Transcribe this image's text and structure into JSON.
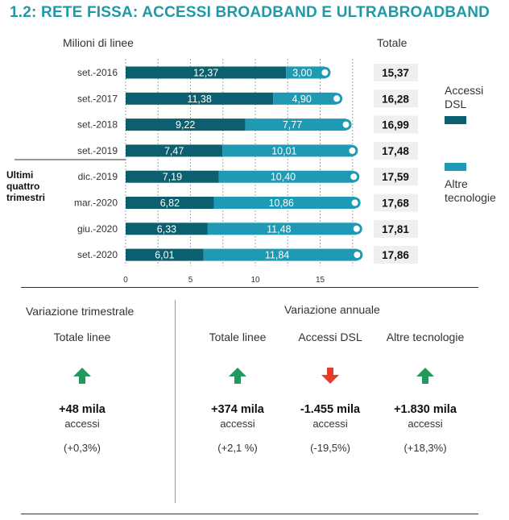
{
  "title": "1.2: RETE FISSA: ACCESSI BROADBAND E ULTRABROADBAND",
  "colors": {
    "dsl": "#0b5f6e",
    "altre": "#1e9ab5",
    "title": "#1e9aa6",
    "up": "#1f9a5b",
    "down": "#e83a2a"
  },
  "chart_data": {
    "type": "bar",
    "orientation": "horizontal",
    "stacked": true,
    "ylabel": "Milioni di linee",
    "total_label": "Totale",
    "group_label": "Ultimi quattro trimestri",
    "categories": [
      "set.-2016",
      "set.-2017",
      "set.-2018",
      "set.-2019",
      "dic.-2019",
      "mar.-2020",
      "giu.-2020",
      "set.-2020"
    ],
    "series": [
      {
        "name": "Accessi DSL",
        "values": [
          12.37,
          11.38,
          9.22,
          7.47,
          7.19,
          6.82,
          6.33,
          6.01
        ],
        "labels": [
          "12,37",
          "11,38",
          "9,22",
          "7,47",
          "7,19",
          "6,82",
          "6,33",
          "6,01"
        ]
      },
      {
        "name": "Altre tecnologie",
        "values": [
          3.0,
          4.9,
          7.77,
          10.01,
          10.4,
          10.86,
          11.48,
          11.84
        ],
        "labels": [
          "3,00",
          "4,90",
          "7,77",
          "10,01",
          "10,40",
          "10,86",
          "11,48",
          "11,84"
        ]
      }
    ],
    "totals": [
      "15,37",
      "16,28",
      "16,99",
      "17,48",
      "17,59",
      "17,68",
      "17,81",
      "17,86"
    ],
    "xlim": [
      0,
      17.9
    ],
    "xticks": [
      0,
      5,
      10,
      15
    ],
    "xtick_labels": [
      "0",
      "5",
      "10",
      "15"
    ],
    "grid": true,
    "legend": [
      "Accessi DSL",
      "Altre tecnologie"
    ],
    "legend_placement": "right"
  },
  "summary": {
    "quarterly": {
      "heading": "Variazione trimestrale",
      "items": [
        {
          "label": "Totale linee",
          "direction": "up",
          "value": "+48 mila",
          "unit": "accessi",
          "pct": "(+0,3%)"
        }
      ]
    },
    "annual": {
      "heading": "Variazione annuale",
      "items": [
        {
          "label": "Totale linee",
          "direction": "up",
          "value": "+374 mila",
          "unit": "accessi",
          "pct": "(+2,1 %)"
        },
        {
          "label": "Accessi DSL",
          "direction": "down",
          "value": "-1.455 mila",
          "unit": "accessi",
          "pct": "(-19,5%)"
        },
        {
          "label": "Altre tecnologie",
          "direction": "up",
          "value": "+1.830 mila",
          "unit": "accessi",
          "pct": "(+18,3%)"
        }
      ]
    }
  }
}
